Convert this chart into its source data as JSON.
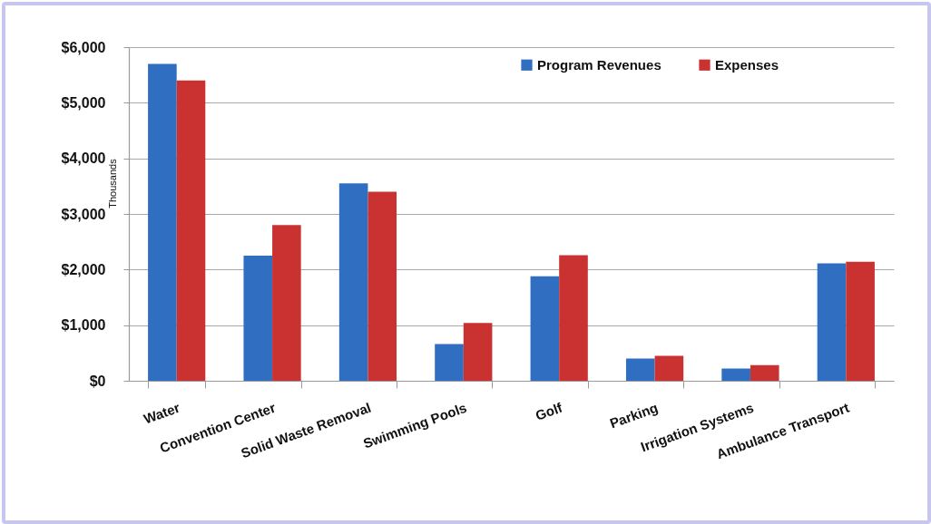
{
  "chart_data": {
    "type": "bar",
    "ylabel": "Thousands",
    "categories": [
      "Water",
      "Convention Center",
      "Solid Waste Removal",
      "Swimming Pools",
      "Golf",
      "Parking",
      "Irrigation Systems",
      "Ambulance Transport"
    ],
    "series": [
      {
        "name": "Program Revenues",
        "color": "#2f6ec0",
        "values": [
          5700,
          2250,
          3550,
          660,
          1880,
          400,
          220,
          2110
        ]
      },
      {
        "name": "Expenses",
        "color": "#c93230",
        "values": [
          5400,
          2800,
          3400,
          1040,
          2260,
          450,
          280,
          2140
        ]
      }
    ],
    "ylim": [
      0,
      6000
    ],
    "yticks": [
      {
        "value": 0,
        "label": "$0"
      },
      {
        "value": 1000,
        "label": "$1,000"
      },
      {
        "value": 2000,
        "label": "$2,000"
      },
      {
        "value": 3000,
        "label": "$3,000"
      },
      {
        "value": 4000,
        "label": "$4,000"
      },
      {
        "value": 5000,
        "label": "$5,000"
      },
      {
        "value": 6000,
        "label": "$6,000"
      }
    ],
    "grid": "y",
    "legend": "top right"
  }
}
